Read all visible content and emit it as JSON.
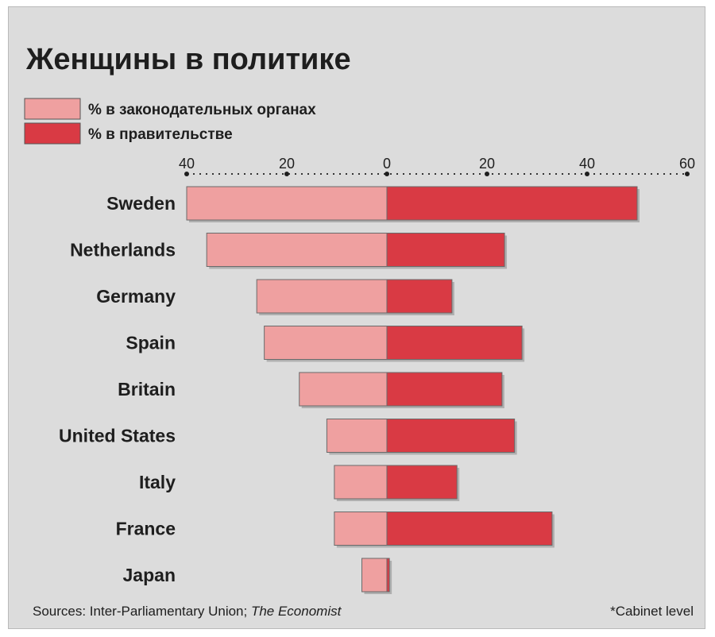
{
  "chart_data": {
    "type": "bar",
    "title": "Женщины в политике",
    "legend": [
      {
        "label": "% в законодательных органах",
        "color": "#efa0a0"
      },
      {
        "label": "% в правительстве",
        "color": "#d93a44"
      }
    ],
    "x_ticks_left": [
      40,
      20,
      0
    ],
    "x_ticks_right": [
      20,
      40,
      60
    ],
    "xlim_left": [
      0,
      40
    ],
    "xlim_right": [
      0,
      60
    ],
    "grid": "dotted top axis",
    "categories": [
      "Sweden",
      "Netherlands",
      "Germany",
      "Spain",
      "Britain",
      "United States",
      "Italy",
      "France",
      "Japan"
    ],
    "series": [
      {
        "name": "% в законодательных органах",
        "values": [
          40,
          36,
          26,
          24.5,
          17.5,
          12,
          10.5,
          10.5,
          5
        ]
      },
      {
        "name": "% в правительстве",
        "values": [
          50,
          23.5,
          13,
          27,
          23,
          25.5,
          14,
          33,
          0.5
        ]
      }
    ]
  },
  "footer": {
    "sources_prefix": "Sources: Inter-Parliamentary Union; ",
    "sources_italic": "The Economist",
    "note": "*Cabinet level"
  },
  "colors": {
    "background": "#dcdcdc",
    "legislature": "#efa0a0",
    "government": "#d93a44",
    "text": "#1e1e1e"
  }
}
